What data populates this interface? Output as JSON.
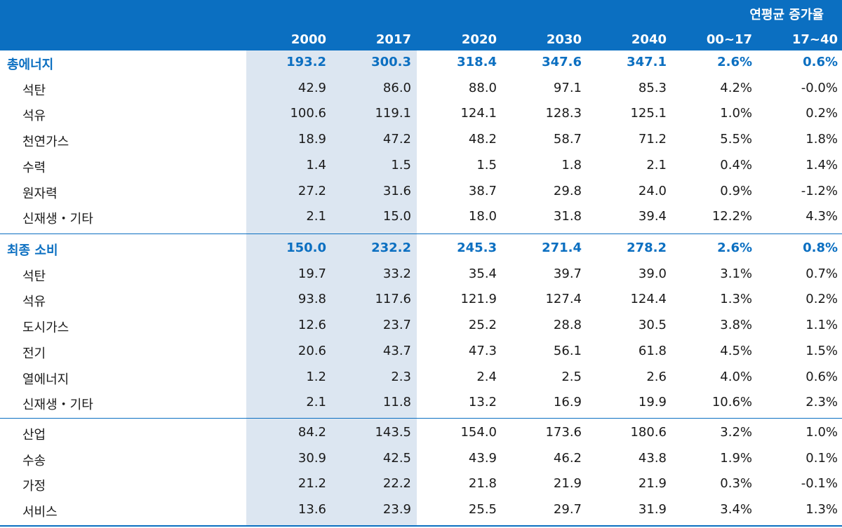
{
  "header": {
    "group_label": "연평균 증가율",
    "columns": [
      "2000",
      "2017",
      "2020",
      "2030",
      "2040",
      "00~17",
      "17~40"
    ]
  },
  "sections": [
    {
      "total": {
        "label": "총에너지",
        "values": [
          "193.2",
          "300.3",
          "318.4",
          "347.6",
          "347.1",
          "2.6%",
          "0.6%"
        ]
      },
      "rows": [
        {
          "label": "석탄",
          "values": [
            "42.9",
            "86.0",
            "88.0",
            "97.1",
            "85.3",
            "4.2%",
            "-0.0%"
          ]
        },
        {
          "label": "석유",
          "values": [
            "100.6",
            "119.1",
            "124.1",
            "128.3",
            "125.1",
            "1.0%",
            "0.2%"
          ]
        },
        {
          "label": "천연가스",
          "values": [
            "18.9",
            "47.2",
            "48.2",
            "58.7",
            "71.2",
            "5.5%",
            "1.8%"
          ]
        },
        {
          "label": "수력",
          "values": [
            "1.4",
            "1.5",
            "1.5",
            "1.8",
            "2.1",
            "0.4%",
            "1.4%"
          ]
        },
        {
          "label": "원자력",
          "values": [
            "27.2",
            "31.6",
            "38.7",
            "29.8",
            "24.0",
            "0.9%",
            "-1.2%"
          ]
        },
        {
          "label": "신재생・기타",
          "values": [
            "2.1",
            "15.0",
            "18.0",
            "31.8",
            "39.4",
            "12.2%",
            "4.3%"
          ]
        }
      ]
    },
    {
      "total": {
        "label": "최종 소비",
        "values": [
          "150.0",
          "232.2",
          "245.3",
          "271.4",
          "278.2",
          "2.6%",
          "0.8%"
        ]
      },
      "rows": [
        {
          "label": "석탄",
          "values": [
            "19.7",
            "33.2",
            "35.4",
            "39.7",
            "39.0",
            "3.1%",
            "0.7%"
          ]
        },
        {
          "label": "석유",
          "values": [
            "93.8",
            "117.6",
            "121.9",
            "127.4",
            "124.4",
            "1.3%",
            "0.2%"
          ]
        },
        {
          "label": "도시가스",
          "values": [
            "12.6",
            "23.7",
            "25.2",
            "28.8",
            "30.5",
            "3.8%",
            "1.1%"
          ]
        },
        {
          "label": "전기",
          "values": [
            "20.6",
            "43.7",
            "47.3",
            "56.1",
            "61.8",
            "4.5%",
            "1.5%"
          ]
        },
        {
          "label": "열에너지",
          "values": [
            "1.2",
            "2.3",
            "2.4",
            "2.5",
            "2.6",
            "4.0%",
            "0.6%"
          ]
        },
        {
          "label": "신재생・기타",
          "values": [
            "2.1",
            "11.8",
            "13.2",
            "16.9",
            "19.9",
            "10.6%",
            "2.3%"
          ]
        }
      ]
    },
    {
      "rows": [
        {
          "label": "산업",
          "values": [
            "84.2",
            "143.5",
            "154.0",
            "173.6",
            "180.6",
            "3.2%",
            "1.0%"
          ]
        },
        {
          "label": "수송",
          "values": [
            "30.9",
            "42.5",
            "43.9",
            "46.2",
            "43.8",
            "1.9%",
            "0.1%"
          ]
        },
        {
          "label": "가정",
          "values": [
            "21.2",
            "22.2",
            "21.8",
            "21.9",
            "21.9",
            "0.3%",
            "-0.1%"
          ]
        },
        {
          "label": "서비스",
          "values": [
            "13.6",
            "23.9",
            "25.5",
            "29.7",
            "31.9",
            "3.4%",
            "1.3%"
          ]
        }
      ]
    }
  ],
  "colors": {
    "header_bg": "#0b6fc1",
    "total_text": "#0b6fc1",
    "highlight_bg": "#dce6f1"
  }
}
